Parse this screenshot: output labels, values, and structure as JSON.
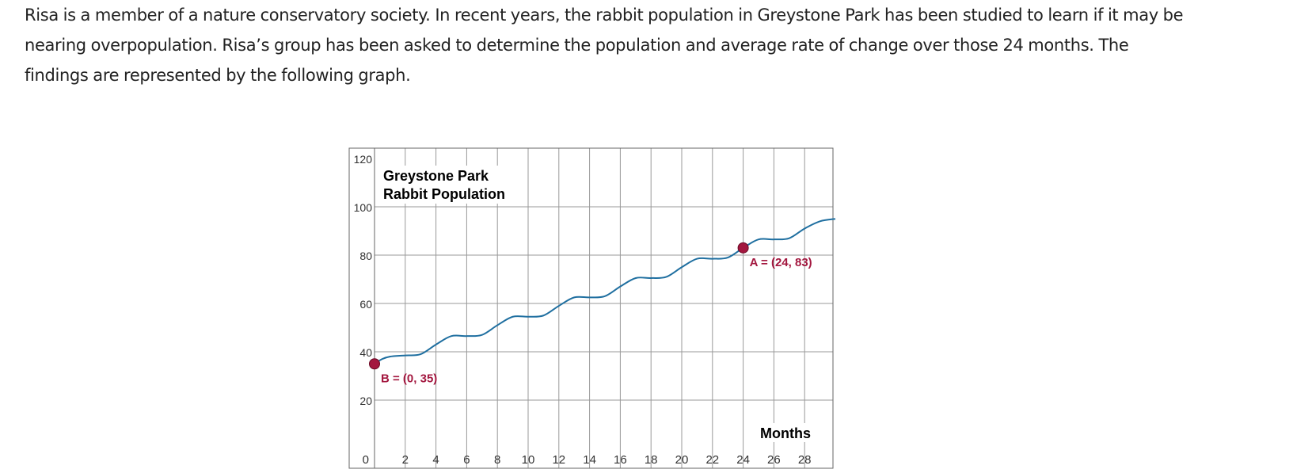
{
  "problem": {
    "text": "Risa is a member of a nature conservatory society. In recent years, the rabbit population in Greystone Park has been studied to learn if it may be nearing overpopulation. Risa’s group has been asked to determine the population and average rate of change over those 24 months. The findings are represented by the following graph."
  },
  "chart_data": {
    "type": "line",
    "title_line1": "Greystone Park",
    "title_line2": "Rabbit Population",
    "xlabel": "Months",
    "ylabel": "",
    "xlim": [
      0,
      30
    ],
    "ylim": [
      0,
      120
    ],
    "x_ticks": [
      0,
      2,
      4,
      6,
      8,
      10,
      12,
      14,
      16,
      18,
      20,
      22,
      24,
      26,
      28
    ],
    "y_ticks": [
      20,
      40,
      60,
      80,
      100,
      120
    ],
    "grid": true,
    "colors": {
      "curve": "#1f6fa0",
      "points": "#a3173f",
      "grid": "#999999",
      "frame": "#666666"
    },
    "series": [
      {
        "name": "Rabbit Population",
        "points": [
          [
            0,
            35
          ],
          [
            0.5,
            37
          ],
          [
            1,
            38
          ],
          [
            2,
            38.5
          ],
          [
            3,
            39
          ],
          [
            4,
            43
          ],
          [
            5,
            46.5
          ],
          [
            6,
            46.5
          ],
          [
            7,
            47
          ],
          [
            8,
            51
          ],
          [
            9,
            54.5
          ],
          [
            10,
            54.5
          ],
          [
            11,
            55
          ],
          [
            12,
            59
          ],
          [
            13,
            62.5
          ],
          [
            14,
            62.5
          ],
          [
            15,
            63
          ],
          [
            16,
            67
          ],
          [
            17,
            70.5
          ],
          [
            18,
            70.5
          ],
          [
            19,
            71
          ],
          [
            20,
            75
          ],
          [
            21,
            78.5
          ],
          [
            22,
            78.5
          ],
          [
            23,
            79
          ],
          [
            24,
            83
          ],
          [
            25,
            86.5
          ],
          [
            26,
            86.5
          ],
          [
            27,
            87
          ],
          [
            28,
            91
          ],
          [
            29,
            94
          ],
          [
            30,
            95
          ]
        ]
      }
    ],
    "labeled_points": [
      {
        "name": "A",
        "x": 24,
        "y": 83,
        "label": "A = (24, 83)"
      },
      {
        "name": "B",
        "x": 0,
        "y": 35,
        "label": "B = (0, 35)"
      }
    ]
  }
}
